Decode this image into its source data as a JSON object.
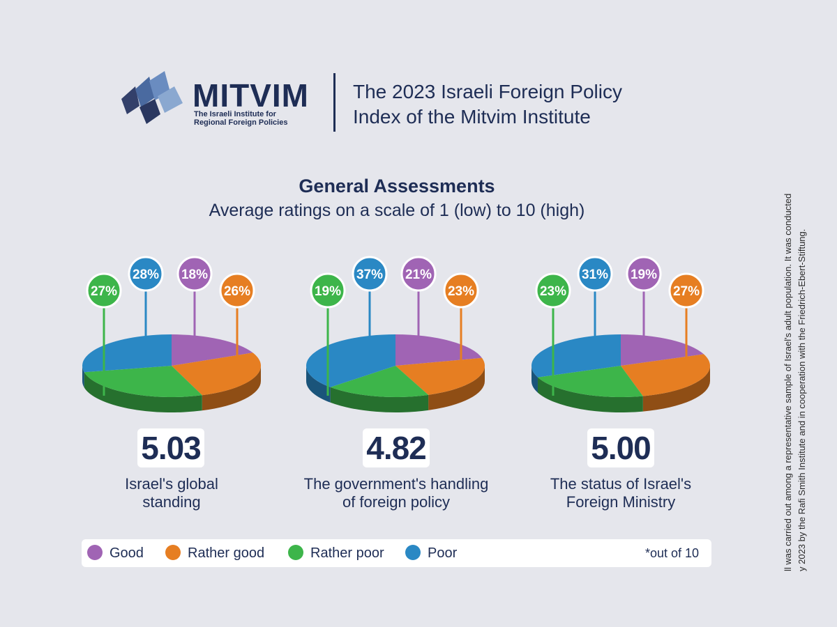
{
  "header": {
    "logo_name": "MITVIM",
    "logo_tagline_1": "The Israeli Institute for",
    "logo_tagline_2": "Regional Foreign Policies",
    "title_line_1": "The 2023 Israeli Foreign Policy",
    "title_line_2": "Index of the Mitvim Institute"
  },
  "colors": {
    "Good": "#a064b4",
    "Rather good": "#e67e22",
    "Rather poor": "#3db54a",
    "Poor": "#2a88c4"
  },
  "chart_data": {
    "type": "pie",
    "title": "General Assessments",
    "subtitle": "Average ratings on a scale of 1 (low) to 10 (high)",
    "legend": [
      "Good",
      "Rather good",
      "Rather poor",
      "Poor"
    ],
    "legend_placement": "bottom",
    "footnote": "*out of 10",
    "charts": [
      {
        "caption_line_1": "Israel's global",
        "caption_line_2": "standing",
        "average": "5.03",
        "slices": [
          {
            "label": "Good",
            "value": 18
          },
          {
            "label": "Rather good",
            "value": 26
          },
          {
            "label": "Rather poor",
            "value": 27
          },
          {
            "label": "Poor",
            "value": 28
          }
        ]
      },
      {
        "caption_line_1": "The government's handling",
        "caption_line_2": "of foreign policy",
        "average": "4.82",
        "slices": [
          {
            "label": "Good",
            "value": 21
          },
          {
            "label": "Rather good",
            "value": 23
          },
          {
            "label": "Rather poor",
            "value": 19
          },
          {
            "label": "Poor",
            "value": 37
          }
        ]
      },
      {
        "caption_line_1": "The status of Israel's",
        "caption_line_2": "Foreign Ministry",
        "average": "5.00",
        "slices": [
          {
            "label": "Good",
            "value": 19
          },
          {
            "label": "Rather good",
            "value": 27
          },
          {
            "label": "Rather poor",
            "value": 23
          },
          {
            "label": "Poor",
            "value": 31
          }
        ]
      }
    ]
  },
  "side_note": {
    "line_1": "ll was carried out among a representative sample of Israel's adult population. It was conducted",
    "line_2": "y 2023 by the Rafi Smith Institute and in cooperation with the Friedrich-Ebert-Stiftung."
  }
}
